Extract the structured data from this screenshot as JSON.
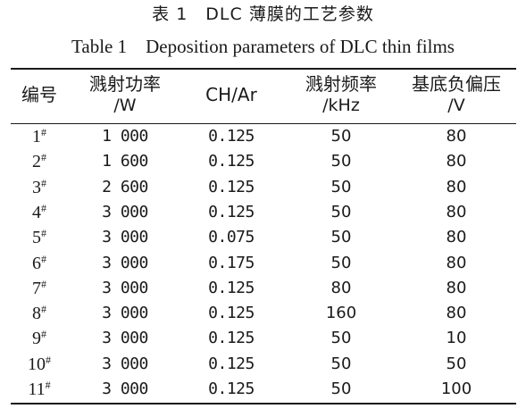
{
  "caption": {
    "cn": "表 1　DLC 薄膜的工艺参数",
    "en": "Table 1　Deposition parameters of DLC thin films"
  },
  "headers": [
    {
      "zh": "编号",
      "unit": ""
    },
    {
      "zh": "溅射功率",
      "unit": "/W"
    },
    {
      "zh": "CH/Ar",
      "unit": ""
    },
    {
      "zh": "溅射频率",
      "unit": "/kHz"
    },
    {
      "zh": "基底负偏压",
      "unit": "/V"
    }
  ],
  "rows": [
    {
      "id": "1",
      "mark": "#",
      "power": "1 000",
      "ratio": "0.125",
      "freq": "50",
      "bias": "80"
    },
    {
      "id": "2",
      "mark": "#",
      "power": "1 600",
      "ratio": "0.125",
      "freq": "50",
      "bias": "80"
    },
    {
      "id": "3",
      "mark": "#",
      "power": "2 600",
      "ratio": "0.125",
      "freq": "50",
      "bias": "80"
    },
    {
      "id": "4",
      "mark": "#",
      "power": "3 000",
      "ratio": "0.125",
      "freq": "50",
      "bias": "80"
    },
    {
      "id": "5",
      "mark": "#",
      "power": "3 000",
      "ratio": "0.075",
      "freq": "50",
      "bias": "80"
    },
    {
      "id": "6",
      "mark": "#",
      "power": "3 000",
      "ratio": "0.175",
      "freq": "50",
      "bias": "80"
    },
    {
      "id": "7",
      "mark": "#",
      "power": "3 000",
      "ratio": "0.125",
      "freq": "80",
      "bias": "80"
    },
    {
      "id": "8",
      "mark": "#",
      "power": "3 000",
      "ratio": "0.125",
      "freq": "160",
      "bias": "80"
    },
    {
      "id": "9",
      "mark": "#",
      "power": "3 000",
      "ratio": "0.125",
      "freq": "50",
      "bias": "10"
    },
    {
      "id": "10",
      "mark": "#",
      "power": "3 000",
      "ratio": "0.125",
      "freq": "50",
      "bias": "50"
    },
    {
      "id": "11",
      "mark": "#",
      "power": "3 000",
      "ratio": "0.125",
      "freq": "50",
      "bias": "100"
    }
  ]
}
